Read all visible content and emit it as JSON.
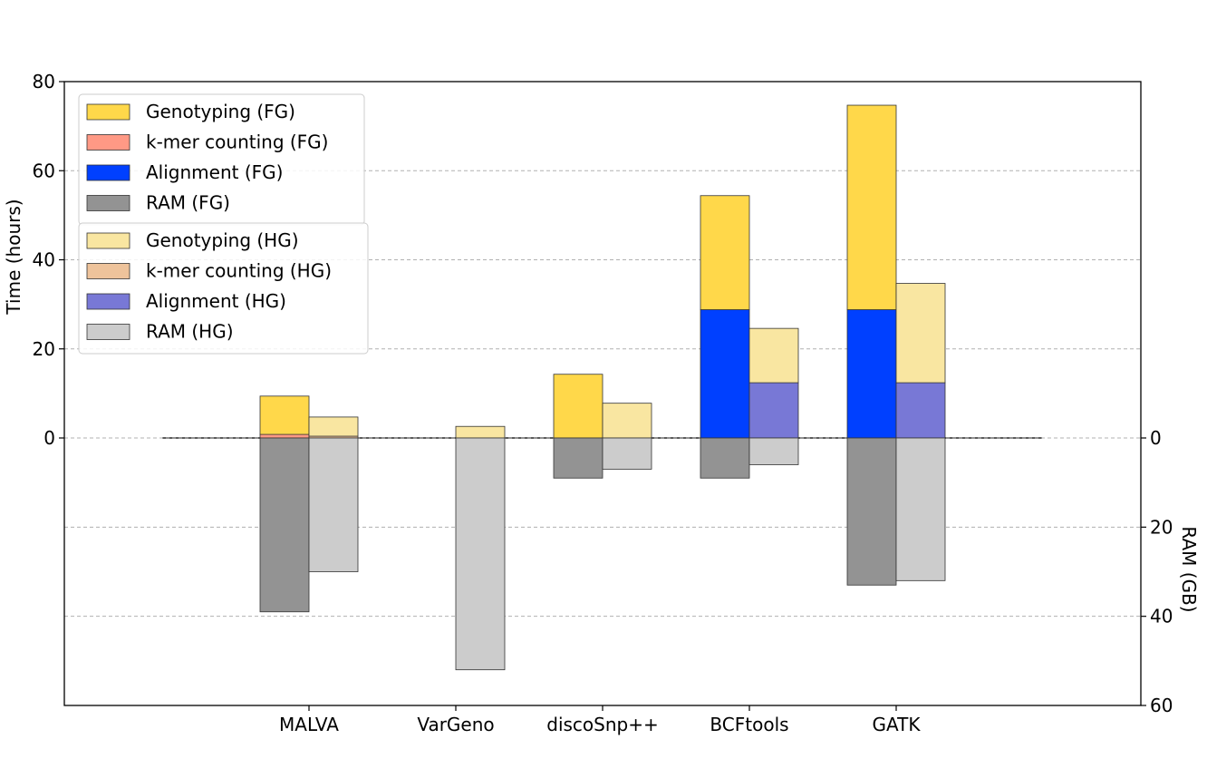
{
  "chart_data": {
    "type": "bar",
    "categories": [
      "MALVA",
      "VarGeno",
      "discoSnp++",
      "BCFtools",
      "GATK"
    ],
    "ylabel": "Time (hours)",
    "y2label": "RAM (GB)",
    "ylim": [
      0,
      80
    ],
    "y_ticks": [
      0,
      20,
      40,
      60,
      80
    ],
    "y2lim": [
      0,
      60
    ],
    "y2_ticks": [
      0,
      20,
      40,
      60
    ],
    "grid": "horizontal dashed",
    "legend_position": "top-left",
    "legend_groups": [
      {
        "entries": [
          {
            "key": "geno_fg",
            "label": "Genotyping (FG)",
            "color": "#FFD84A"
          },
          {
            "key": "kmer_fg",
            "label": "k-mer counting (FG)",
            "color": "#FF9985"
          },
          {
            "key": "align_fg",
            "label": "Alignment (FG)",
            "color": "#0040FF"
          },
          {
            "key": "ram_fg",
            "label": "RAM (FG)",
            "color": "#939393"
          }
        ]
      },
      {
        "entries": [
          {
            "key": "geno_hg",
            "label": "Genotyping (HG)",
            "color": "#F9E6A1"
          },
          {
            "key": "kmer_hg",
            "label": "k-mer counting (HG)",
            "color": "#EEC39B"
          },
          {
            "key": "align_hg",
            "label": "Alignment (HG)",
            "color": "#7878D6"
          },
          {
            "key": "ram_hg",
            "label": "RAM (HG)",
            "color": "#CCCCCC"
          }
        ]
      }
    ],
    "fg": {
      "alignment": [
        0,
        0,
        0,
        28.8,
        28.8
      ],
      "kmer_counting": [
        0.8,
        0,
        0,
        0,
        0
      ],
      "genotyping": [
        8.6,
        0,
        14.3,
        25.6,
        45.9
      ],
      "ram": [
        39,
        0,
        9,
        9,
        33
      ]
    },
    "hg": {
      "alignment": [
        0,
        0,
        0,
        12.4,
        12.4
      ],
      "kmer_counting": [
        0.4,
        0,
        0,
        0,
        0
      ],
      "genotyping": [
        4.3,
        2.6,
        7.8,
        12.2,
        22.3
      ],
      "ram": [
        30,
        52,
        7,
        6,
        32
      ]
    }
  }
}
